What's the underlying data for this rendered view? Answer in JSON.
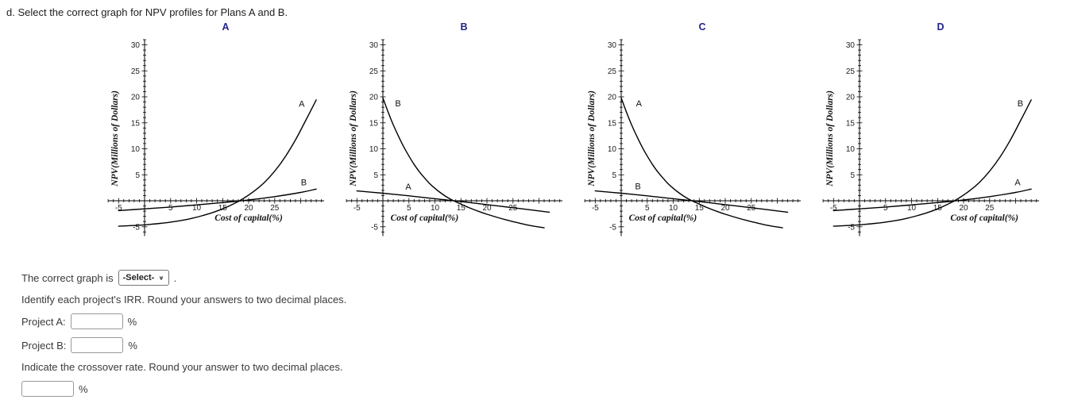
{
  "colors": {
    "title_navy": "#23238e",
    "curve": "#000000",
    "text": "#333333"
  },
  "question": "d. Select the correct graph for NPV profiles for Plans A and B.",
  "form": {
    "correct_graph_prefix": "The correct graph is",
    "select_value": "-Select-",
    "after_select": ".",
    "irr_instruction": "Identify each project's IRR. Round your answers to two decimal places.",
    "project_a_label": "Project A:",
    "project_b_label": "Project B:",
    "percent": "%",
    "crossover_instruction": "Indicate the crossover rate. Round your answer to two decimal places."
  },
  "chart_data": [
    {
      "type": "line",
      "title": "A",
      "xlabel": "Cost of capital(%)",
      "ylabel": "NPV(Millions of Dollars)",
      "xlim": [
        -7,
        34.5
      ],
      "ylim": [
        -6.8,
        31
      ],
      "xticks": [
        -5,
        5,
        10,
        15,
        20,
        25
      ],
      "yticks": [
        -5,
        5,
        10,
        15,
        20,
        25,
        30
      ],
      "xlabel_x": 20,
      "series": [
        {
          "name": "A",
          "label_x": 30.2,
          "label_y": 18.1,
          "points": [
            [
              -5,
              -4.9
            ],
            [
              -3,
              -4.8
            ],
            [
              -1,
              -4.7
            ],
            [
              1,
              -4.55
            ],
            [
              3,
              -4.35
            ],
            [
              5,
              -4.1
            ],
            [
              7,
              -3.8
            ],
            [
              9,
              -3.4
            ],
            [
              11,
              -2.9
            ],
            [
              13,
              -2.3
            ],
            [
              15,
              -1.55
            ],
            [
              17,
              -0.65
            ],
            [
              19,
              0.45
            ],
            [
              21,
              1.8
            ],
            [
              23,
              3.5
            ],
            [
              25,
              5.7
            ],
            [
              27,
              8.4
            ],
            [
              29,
              11.7
            ],
            [
              31,
              15.5
            ],
            [
              33,
              19.4
            ]
          ]
        },
        {
          "name": "B",
          "label_x": 30.6,
          "label_y": 3.0,
          "points": [
            [
              -5,
              -1.9
            ],
            [
              0,
              -1.55
            ],
            [
              5,
              -1.2
            ],
            [
              10,
              -0.8
            ],
            [
              15,
              -0.35
            ],
            [
              20,
              0.15
            ],
            [
              25,
              0.8
            ],
            [
              30,
              1.6
            ],
            [
              33,
              2.25
            ]
          ]
        }
      ]
    },
    {
      "type": "line",
      "title": "B",
      "xlabel": "Cost of capital(%)",
      "ylabel": "NPV(Millions of Dollars)",
      "xlim": [
        -7,
        34.5
      ],
      "ylim": [
        -6.8,
        31
      ],
      "xticks": [
        -5,
        5,
        10,
        15,
        20,
        25
      ],
      "yticks": [
        -5,
        5,
        10,
        15,
        20,
        25,
        30
      ],
      "xlabel_x": 8,
      "series": [
        {
          "name": "B",
          "label_x": 2.9,
          "label_y": 18.2,
          "points": [
            [
              0,
              19.8
            ],
            [
              1,
              17.1
            ],
            [
              2,
              14.6
            ],
            [
              3,
              12.4
            ],
            [
              4,
              10.4
            ],
            [
              5,
              8.6
            ],
            [
              6,
              7.0
            ],
            [
              7,
              5.6
            ],
            [
              8,
              4.4
            ],
            [
              9,
              3.3
            ],
            [
              10,
              2.4
            ],
            [
              11,
              1.6
            ],
            [
              12,
              0.9
            ],
            [
              13,
              0.3
            ],
            [
              14,
              -0.2
            ],
            [
              16,
              -1.1
            ],
            [
              18,
              -1.9
            ],
            [
              20,
              -2.6
            ],
            [
              22,
              -3.2
            ],
            [
              24,
              -3.75
            ],
            [
              26,
              -4.25
            ],
            [
              28,
              -4.7
            ],
            [
              30,
              -5.05
            ],
            [
              31,
              -5.2
            ]
          ]
        },
        {
          "name": "A",
          "label_x": 4.9,
          "label_y": 2.1,
          "points": [
            [
              -5,
              1.9
            ],
            [
              0,
              1.45
            ],
            [
              5,
              0.95
            ],
            [
              10,
              0.4
            ],
            [
              15,
              -0.15
            ],
            [
              20,
              -0.75
            ],
            [
              25,
              -1.35
            ],
            [
              30,
              -1.95
            ],
            [
              32,
              -2.2
            ]
          ]
        }
      ]
    },
    {
      "type": "line",
      "title": "C",
      "xlabel": "Cost of capital(%)",
      "ylabel": "NPV(Millions of Dollars)",
      "xlim": [
        -7,
        34.5
      ],
      "ylim": [
        -6.8,
        31
      ],
      "xticks": [
        -5,
        5,
        10,
        15,
        20,
        25
      ],
      "yticks": [
        -5,
        5,
        10,
        15,
        20,
        25,
        30
      ],
      "xlabel_x": 8,
      "series": [
        {
          "name": "A",
          "label_x": 3.4,
          "label_y": 18.2,
          "points": [
            [
              0,
              19.8
            ],
            [
              1,
              17.1
            ],
            [
              2,
              14.6
            ],
            [
              3,
              12.4
            ],
            [
              4,
              10.4
            ],
            [
              5,
              8.6
            ],
            [
              6,
              7.0
            ],
            [
              7,
              5.6
            ],
            [
              8,
              4.4
            ],
            [
              9,
              3.3
            ],
            [
              10,
              2.4
            ],
            [
              11,
              1.6
            ],
            [
              12,
              0.9
            ],
            [
              13,
              0.3
            ],
            [
              14,
              -0.2
            ],
            [
              16,
              -1.1
            ],
            [
              18,
              -1.9
            ],
            [
              20,
              -2.6
            ],
            [
              22,
              -3.2
            ],
            [
              24,
              -3.75
            ],
            [
              26,
              -4.25
            ],
            [
              28,
              -4.7
            ],
            [
              30,
              -5.05
            ],
            [
              31,
              -5.2
            ]
          ]
        },
        {
          "name": "B",
          "label_x": 3.2,
          "label_y": 2.2,
          "points": [
            [
              -5,
              1.9
            ],
            [
              0,
              1.45
            ],
            [
              5,
              0.95
            ],
            [
              10,
              0.4
            ],
            [
              15,
              -0.15
            ],
            [
              20,
              -0.75
            ],
            [
              25,
              -1.35
            ],
            [
              30,
              -1.95
            ],
            [
              32,
              -2.2
            ]
          ]
        }
      ]
    },
    {
      "type": "line",
      "title": "D",
      "xlabel": "Cost of capital(%)",
      "ylabel": "NPV(Millions of Dollars)",
      "xlim": [
        -7,
        34.5
      ],
      "ylim": [
        -6.8,
        31
      ],
      "xticks": [
        -5,
        5,
        10,
        15,
        20,
        25
      ],
      "yticks": [
        -5,
        5,
        10,
        15,
        20,
        25,
        30
      ],
      "xlabel_x": 24,
      "series": [
        {
          "name": "B",
          "label_x": 30.9,
          "label_y": 18.2,
          "points": [
            [
              -5,
              -4.9
            ],
            [
              -3,
              -4.8
            ],
            [
              -1,
              -4.7
            ],
            [
              1,
              -4.55
            ],
            [
              3,
              -4.35
            ],
            [
              5,
              -4.1
            ],
            [
              7,
              -3.8
            ],
            [
              9,
              -3.4
            ],
            [
              11,
              -2.9
            ],
            [
              13,
              -2.3
            ],
            [
              15,
              -1.55
            ],
            [
              17,
              -0.65
            ],
            [
              19,
              0.45
            ],
            [
              21,
              1.8
            ],
            [
              23,
              3.5
            ],
            [
              25,
              5.7
            ],
            [
              27,
              8.4
            ],
            [
              29,
              11.7
            ],
            [
              31,
              15.5
            ],
            [
              33,
              19.4
            ]
          ]
        },
        {
          "name": "A",
          "label_x": 30.4,
          "label_y": 3.0,
          "points": [
            [
              -5,
              -1.9
            ],
            [
              0,
              -1.55
            ],
            [
              5,
              -1.2
            ],
            [
              10,
              -0.8
            ],
            [
              15,
              -0.35
            ],
            [
              20,
              0.15
            ],
            [
              25,
              0.8
            ],
            [
              30,
              1.6
            ],
            [
              33,
              2.25
            ]
          ]
        }
      ]
    }
  ]
}
